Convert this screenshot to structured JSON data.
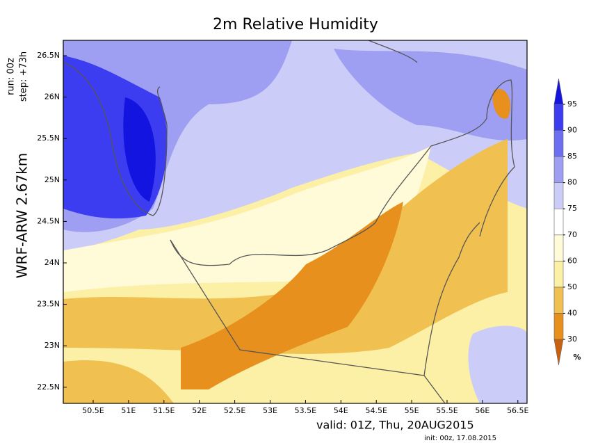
{
  "title": "2m Relative Humidity",
  "run": "run:  00z",
  "step": "step: +73h",
  "model": "WRF-ARW 2.67km",
  "lat_labels": [
    "26.5N",
    "26N",
    "25.5N",
    "25N",
    "24.5N",
    "24N",
    "23.5N",
    "23N",
    "22.5N"
  ],
  "lon_labels": [
    "50.5E",
    "51E",
    "51.5E",
    "52E",
    "52.5E",
    "53E",
    "53.5E",
    "54E",
    "54.5E",
    "55E",
    "55.5E",
    "56E",
    "56.5E"
  ],
  "colorbar": {
    "levels": [
      30,
      40,
      50,
      60,
      70,
      75,
      80,
      85,
      90,
      95
    ],
    "colors": [
      "#c8600f",
      "#e8901e",
      "#f0c050",
      "#fcf0a6",
      "#fffbd8",
      "#ffffff",
      "#ccccf8",
      "#9e9ef2",
      "#6e6ef0",
      "#3c3cf0",
      "#1414e0"
    ],
    "unit": "%"
  },
  "valid": "valid: 01Z, Thu, 20AUG2015",
  "init": "init: 00z, 17.08.2015"
}
